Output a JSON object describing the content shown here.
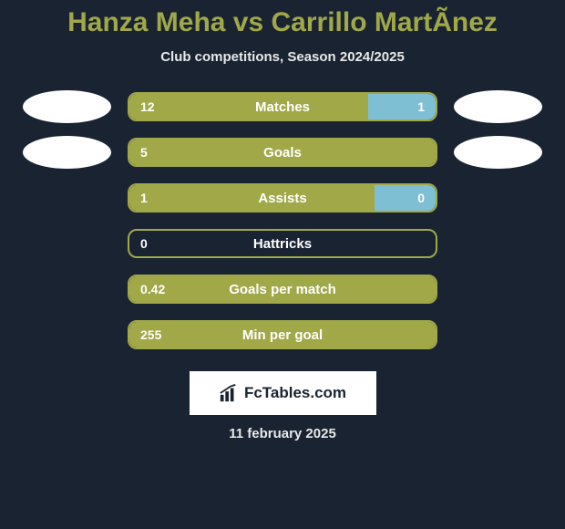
{
  "title": "Hanza Meha vs Carrillo MartÃnez",
  "subtitle": "Club competitions, Season 2024/2025",
  "logo_text": "FcTables.com",
  "date_text": "11 february 2025",
  "colors": {
    "background": "#1a2332",
    "title_color": "#a0a848",
    "subtitle_color": "#e8e8e8",
    "player1_color": "#a0a848",
    "player2_color": "#7fbfd4",
    "avatar_bg": "#ffffff",
    "text_white": "#ffffff"
  },
  "avatars": {
    "row0_left": true,
    "row0_right": true,
    "row1_left": true,
    "row1_right": true
  },
  "stats": [
    {
      "label": "Matches",
      "left_value": "12",
      "right_value": "1",
      "left_pct": 78,
      "right_pct": 22,
      "border_color": "#a0a848",
      "fill_left_color": "#a0a848",
      "fill_right_color": "#7fbfd4"
    },
    {
      "label": "Goals",
      "left_value": "5",
      "right_value": "",
      "left_pct": 100,
      "right_pct": 0,
      "border_color": "#a0a848",
      "fill_left_color": "#a0a848",
      "fill_right_color": "#7fbfd4"
    },
    {
      "label": "Assists",
      "left_value": "1",
      "right_value": "0",
      "left_pct": 80,
      "right_pct": 20,
      "border_color": "#a0a848",
      "fill_left_color": "#a0a848",
      "fill_right_color": "#7fbfd4"
    },
    {
      "label": "Hattricks",
      "left_value": "0",
      "right_value": "",
      "left_pct": 0,
      "right_pct": 0,
      "border_color": "#a0a848",
      "fill_left_color": "#a0a848",
      "fill_right_color": "#7fbfd4"
    },
    {
      "label": "Goals per match",
      "left_value": "0.42",
      "right_value": "",
      "left_pct": 100,
      "right_pct": 0,
      "border_color": "#a0a848",
      "fill_left_color": "#a0a848",
      "fill_right_color": "#7fbfd4"
    },
    {
      "label": "Min per goal",
      "left_value": "255",
      "right_value": "",
      "left_pct": 100,
      "right_pct": 0,
      "border_color": "#a0a848",
      "fill_left_color": "#a0a848",
      "fill_right_color": "#7fbfd4"
    }
  ]
}
